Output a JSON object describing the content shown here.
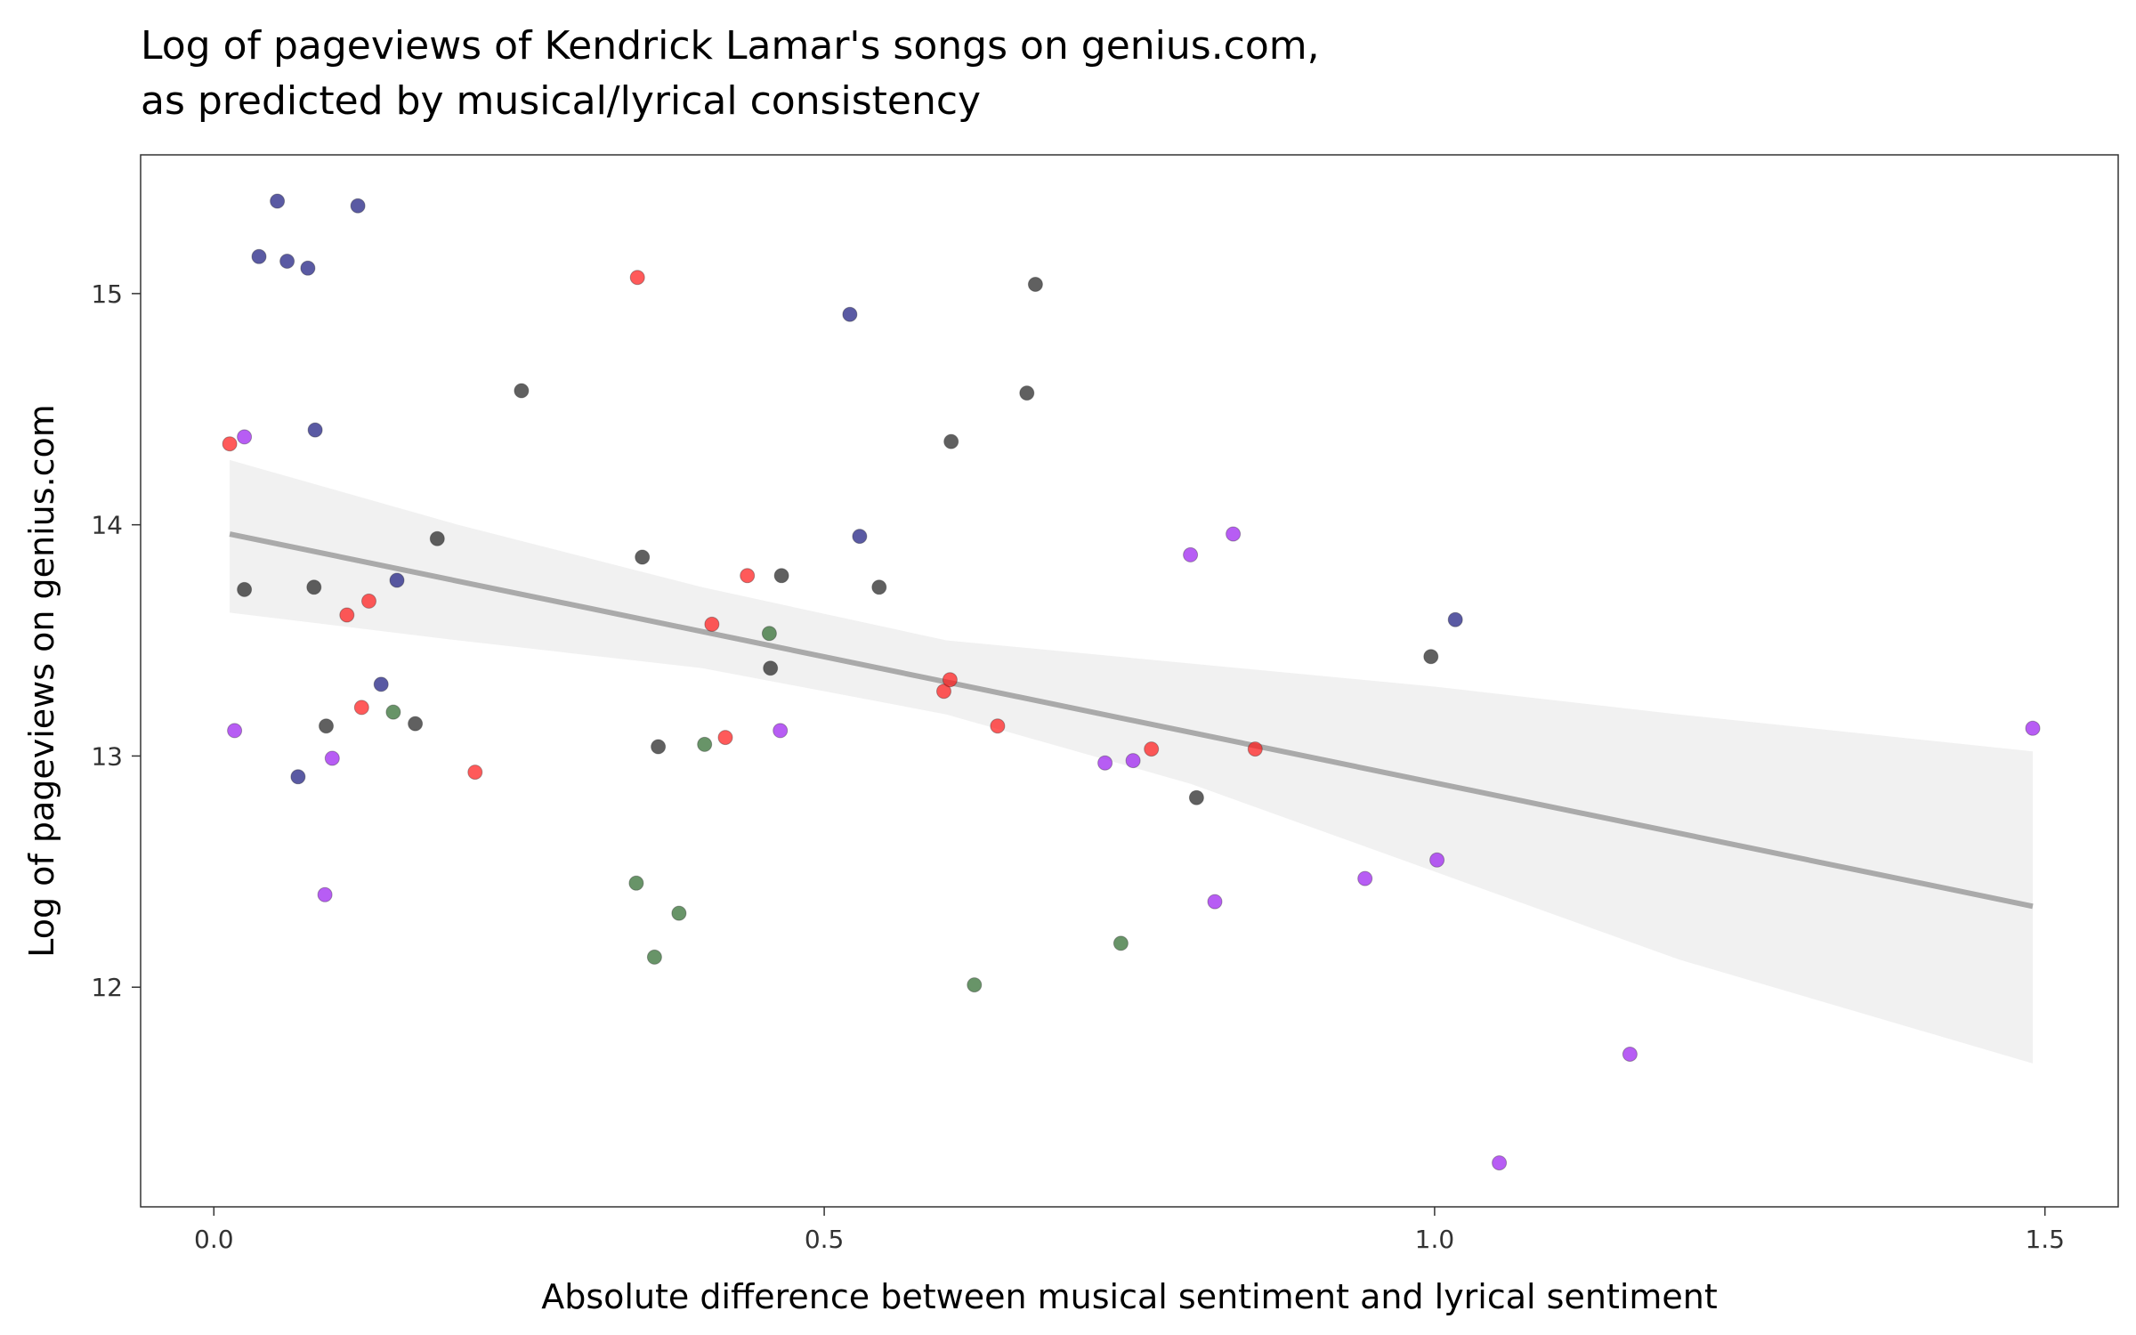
{
  "chart_data": {
    "type": "scatter",
    "title_lines": [
      "Log of pageviews of Kendrick Lamar's songs on genius.com,",
      "as predicted by musical/lyrical consistency"
    ],
    "xlabel": "Absolute difference between musical sentiment and lyrical sentiment",
    "ylabel": "Log of pageviews on genius.com",
    "xlim": [
      -0.06,
      1.56
    ],
    "ylim": [
      11.05,
      15.6
    ],
    "x_ticks": [
      0.0,
      0.5,
      1.0,
      1.5
    ],
    "x_tick_labels": [
      "0.0",
      "0.5",
      "1.0",
      "1.5"
    ],
    "y_ticks": [
      12,
      13,
      14,
      15
    ],
    "y_tick_labels": [
      "12",
      "13",
      "14",
      "15"
    ],
    "grid": false,
    "legend": "none",
    "panel_background": "#ffffff",
    "panel_border": "#333333",
    "series": [
      {
        "color": "#1a1a80",
        "points": [
          [
            0.052,
            15.4
          ],
          [
            0.118,
            15.38
          ],
          [
            0.037,
            15.16
          ],
          [
            0.06,
            15.14
          ],
          [
            0.077,
            15.11
          ],
          [
            0.521,
            14.91
          ],
          [
            0.083,
            14.41
          ],
          [
            0.529,
            13.95
          ],
          [
            0.15,
            13.76
          ],
          [
            0.137,
            13.31
          ],
          [
            0.069,
            12.91
          ],
          [
            1.017,
            13.59
          ]
        ]
      },
      {
        "color": "#ff1a1a",
        "points": [
          [
            0.347,
            15.07
          ],
          [
            0.013,
            14.35
          ],
          [
            0.437,
            13.78
          ],
          [
            0.109,
            13.61
          ],
          [
            0.127,
            13.67
          ],
          [
            0.408,
            13.57
          ],
          [
            0.121,
            13.21
          ],
          [
            0.214,
            12.93
          ],
          [
            0.419,
            13.08
          ],
          [
            0.598,
            13.28
          ],
          [
            0.603,
            13.33
          ],
          [
            0.642,
            13.13
          ],
          [
            0.768,
            13.03
          ],
          [
            0.853,
            13.03
          ]
        ]
      },
      {
        "color": "#222222",
        "points": [
          [
            0.673,
            15.04
          ],
          [
            0.252,
            14.58
          ],
          [
            0.666,
            14.57
          ],
          [
            0.604,
            14.36
          ],
          [
            0.183,
            13.94
          ],
          [
            0.351,
            13.86
          ],
          [
            0.465,
            13.78
          ],
          [
            0.545,
            13.73
          ],
          [
            0.025,
            13.72
          ],
          [
            0.082,
            13.73
          ],
          [
            0.456,
            13.38
          ],
          [
            0.092,
            13.13
          ],
          [
            0.165,
            13.14
          ],
          [
            0.364,
            13.04
          ],
          [
            0.997,
            13.43
          ],
          [
            0.805,
            12.82
          ]
        ]
      },
      {
        "color": "#9b1ff0",
        "points": [
          [
            0.025,
            14.38
          ],
          [
            0.017,
            13.11
          ],
          [
            0.097,
            12.99
          ],
          [
            0.091,
            12.4
          ],
          [
            0.464,
            13.11
          ],
          [
            0.73,
            12.97
          ],
          [
            0.753,
            12.98
          ],
          [
            0.8,
            13.87
          ],
          [
            0.835,
            13.96
          ],
          [
            0.82,
            12.37
          ],
          [
            0.943,
            12.47
          ],
          [
            1.002,
            12.55
          ],
          [
            1.16,
            11.71
          ],
          [
            1.053,
            11.24
          ],
          [
            1.49,
            13.12
          ]
        ]
      },
      {
        "color": "#2e6b2e",
        "points": [
          [
            0.455,
            13.53
          ],
          [
            0.147,
            13.19
          ],
          [
            0.402,
            13.05
          ],
          [
            0.346,
            12.45
          ],
          [
            0.381,
            12.32
          ],
          [
            0.361,
            12.13
          ],
          [
            0.623,
            12.01
          ],
          [
            0.743,
            12.19
          ]
        ]
      }
    ],
    "trend_line": {
      "color": "#aaaaaa",
      "x": [
        0.013,
        1.49
      ],
      "y": [
        13.96,
        12.35
      ]
    },
    "confidence_band": {
      "color": "#ebebeb",
      "x": [
        0.013,
        0.2,
        0.4,
        0.6,
        0.8,
        1.0,
        1.2,
        1.49
      ],
      "upper": [
        14.28,
        14.0,
        13.73,
        13.5,
        13.4,
        13.3,
        13.18,
        13.02
      ],
      "lower": [
        13.62,
        13.5,
        13.38,
        13.18,
        12.88,
        12.5,
        12.12,
        11.67
      ]
    }
  }
}
